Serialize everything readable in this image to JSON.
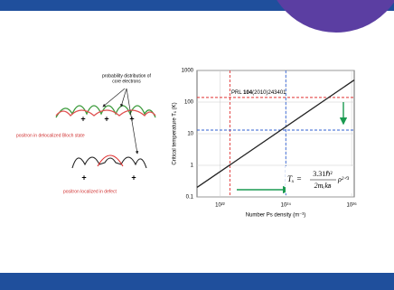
{
  "diagram": {
    "electron_label": [
      "probability distribution of",
      "core electrons"
    ],
    "bloch_label": "positron in delocalized Bloch state",
    "defect_label": "positron localized in defect",
    "plus": "+"
  },
  "chart_data": {
    "type": "line",
    "y_label": "Critical temperature Tₓ (K)",
    "x_label": "Number Ps density (m⁻³)",
    "annotation": {
      "prefix": "PRL ",
      "volume": "104",
      "rest": "(2010)243401"
    },
    "formula": {
      "lhs": "Tₓ =",
      "numerator": "3.31ℏ²",
      "denominator": "2mₑkʙ",
      "rhs": "ρ²ᐟ³"
    },
    "log_x": true,
    "log_y": true,
    "grid": true,
    "xlim": [
      2e+21,
      1.2e+26
    ],
    "ylim": [
      0.1,
      1000
    ],
    "xticks": [
      {
        "value": 1e+22,
        "label": "10²²"
      },
      {
        "value": 1e+24,
        "label": "10²⁴"
      },
      {
        "value": 1e+26,
        "label": "10²⁶"
      }
    ],
    "yticks": [
      0.1,
      1,
      10,
      100,
      1000
    ],
    "series": [
      {
        "color": "#222222",
        "x": [
          2e+21,
          1.2e+26
        ],
        "values": [
          0.2,
          500
        ]
      }
    ],
    "vlines": [
      {
        "value": 2e+22,
        "color": "#e03030"
      },
      {
        "value": 1e+24,
        "color": "#3060d0"
      }
    ],
    "hlines": [
      {
        "value": 140,
        "color": "#e03030"
      },
      {
        "value": 13,
        "color": "#3060d0"
      }
    ]
  }
}
